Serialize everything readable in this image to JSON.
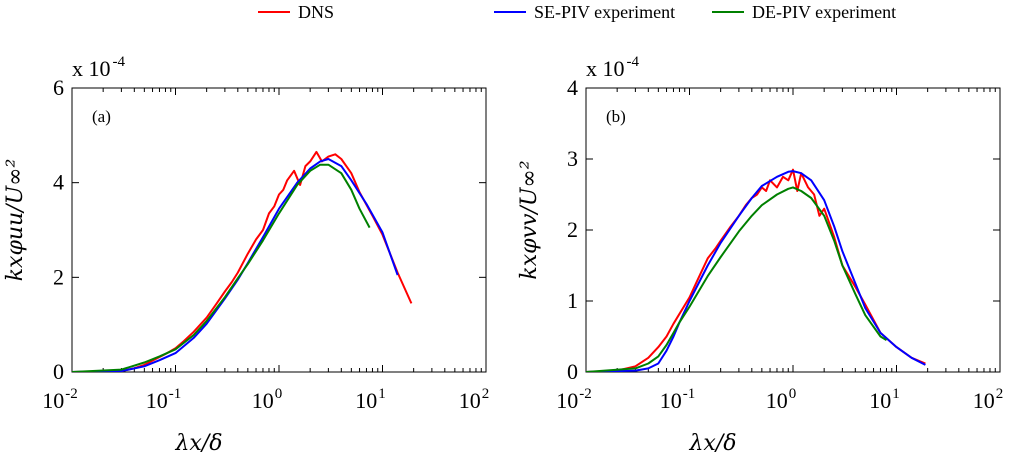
{
  "legend": {
    "entries": [
      {
        "label": "DNS",
        "color": "#ff0000"
      },
      {
        "label": "SE-PIV experiment",
        "color": "#0000ff"
      },
      {
        "label": "DE-PIV experiment",
        "color": "#008000"
      }
    ],
    "placement": "top-center"
  },
  "chart_data": [
    {
      "type": "line",
      "panel_label": "(a)",
      "multiplier_text": "x 10",
      "multiplier_exp": "-4",
      "xlabel": "λx/δ",
      "ylabel": "kxφuu/U∞²",
      "x_scale": "log",
      "xlim": [
        0.01,
        100
      ],
      "ylim": [
        0,
        6
      ],
      "x_ticks": [
        {
          "value": 0.01,
          "base": "10",
          "exp": "-2"
        },
        {
          "value": 0.1,
          "base": "10",
          "exp": "-1"
        },
        {
          "value": 1,
          "base": "10",
          "exp": "0"
        },
        {
          "value": 10,
          "base": "10",
          "exp": "1"
        },
        {
          "value": 100,
          "base": "10",
          "exp": "2"
        }
      ],
      "y_ticks": [
        {
          "value": 0,
          "label": "0"
        },
        {
          "value": 2,
          "label": "2"
        },
        {
          "value": 4,
          "label": "4"
        },
        {
          "value": 6,
          "label": "6"
        }
      ],
      "grid": false,
      "series": [
        {
          "name": "DNS",
          "color": "#ff0000",
          "x": [
            0.01,
            0.03,
            0.04,
            0.05,
            0.06,
            0.08,
            0.1,
            0.12,
            0.15,
            0.2,
            0.25,
            0.3,
            0.35,
            0.4,
            0.5,
            0.6,
            0.7,
            0.8,
            0.9,
            1.0,
            1.1,
            1.2,
            1.4,
            1.6,
            1.8,
            2.0,
            2.3,
            2.6,
            3.0,
            3.5,
            4.0,
            5.0,
            6.0,
            8.0,
            10,
            14,
            19
          ],
          "y": [
            0,
            0.02,
            0.08,
            0.15,
            0.24,
            0.38,
            0.5,
            0.65,
            0.85,
            1.15,
            1.45,
            1.7,
            1.9,
            2.1,
            2.5,
            2.8,
            3.0,
            3.35,
            3.5,
            3.75,
            3.85,
            4.05,
            4.25,
            3.95,
            4.35,
            4.45,
            4.65,
            4.45,
            4.55,
            4.6,
            4.5,
            4.2,
            3.8,
            3.3,
            2.9,
            2.1,
            1.45
          ]
        },
        {
          "name": "SE-PIV experiment",
          "color": "#0000ff",
          "x": [
            0.01,
            0.03,
            0.05,
            0.07,
            0.1,
            0.15,
            0.2,
            0.3,
            0.4,
            0.5,
            0.7,
            1.0,
            1.5,
            2.0,
            2.5,
            3.0,
            4.0,
            5.0,
            7.0,
            10,
            14
          ],
          "y": [
            0,
            0.02,
            0.12,
            0.25,
            0.4,
            0.72,
            1.02,
            1.55,
            1.95,
            2.3,
            2.85,
            3.45,
            4.0,
            4.3,
            4.45,
            4.5,
            4.35,
            4.05,
            3.55,
            2.95,
            2.05
          ]
        },
        {
          "name": "DE-PIV experiment",
          "color": "#008000",
          "x": [
            0.01,
            0.03,
            0.05,
            0.07,
            0.1,
            0.15,
            0.2,
            0.3,
            0.4,
            0.5,
            0.7,
            1.0,
            1.5,
            2.0,
            2.5,
            3.0,
            4.0,
            5.0,
            6.0,
            7.5
          ],
          "y": [
            0,
            0.05,
            0.2,
            0.33,
            0.48,
            0.78,
            1.08,
            1.58,
            1.98,
            2.28,
            2.78,
            3.35,
            3.95,
            4.25,
            4.38,
            4.38,
            4.2,
            3.85,
            3.45,
            3.05
          ]
        }
      ]
    },
    {
      "type": "line",
      "panel_label": "(b)",
      "multiplier_text": "x 10",
      "multiplier_exp": "-4",
      "xlabel": "λx/δ",
      "ylabel": "kxφvv/U∞²",
      "x_scale": "log",
      "xlim": [
        0.01,
        100
      ],
      "ylim": [
        0,
        4
      ],
      "x_ticks": [
        {
          "value": 0.01,
          "base": "10",
          "exp": "-2"
        },
        {
          "value": 0.1,
          "base": "10",
          "exp": "-1"
        },
        {
          "value": 1,
          "base": "10",
          "exp": "0"
        },
        {
          "value": 10,
          "base": "10",
          "exp": "1"
        },
        {
          "value": 100,
          "base": "10",
          "exp": "2"
        }
      ],
      "y_ticks": [
        {
          "value": 0,
          "label": "0"
        },
        {
          "value": 1,
          "label": "1"
        },
        {
          "value": 2,
          "label": "2"
        },
        {
          "value": 3,
          "label": "3"
        },
        {
          "value": 4,
          "label": "4"
        }
      ],
      "grid": false,
      "series": [
        {
          "name": "DNS",
          "color": "#ff0000",
          "x": [
            0.01,
            0.02,
            0.03,
            0.04,
            0.05,
            0.06,
            0.07,
            0.08,
            0.1,
            0.12,
            0.15,
            0.18,
            0.2,
            0.25,
            0.3,
            0.35,
            0.4,
            0.45,
            0.5,
            0.55,
            0.6,
            0.7,
            0.8,
            0.9,
            1.0,
            1.1,
            1.2,
            1.4,
            1.6,
            1.8,
            2.0,
            2.5,
            3.0,
            4.0,
            5.0,
            7.0,
            10,
            14,
            19
          ],
          "y": [
            0,
            0.02,
            0.08,
            0.2,
            0.35,
            0.5,
            0.68,
            0.82,
            1.05,
            1.3,
            1.6,
            1.75,
            1.85,
            2.05,
            2.2,
            2.35,
            2.45,
            2.5,
            2.6,
            2.55,
            2.7,
            2.6,
            2.75,
            2.7,
            2.85,
            2.55,
            2.8,
            2.6,
            2.5,
            2.2,
            2.3,
            1.9,
            1.5,
            1.2,
            0.95,
            0.55,
            0.35,
            0.2,
            0.12
          ]
        },
        {
          "name": "SE-PIV experiment",
          "color": "#0000ff",
          "x": [
            0.01,
            0.03,
            0.04,
            0.05,
            0.06,
            0.07,
            0.08,
            0.1,
            0.15,
            0.2,
            0.3,
            0.4,
            0.5,
            0.7,
            0.9,
            1.0,
            1.2,
            1.5,
            2.0,
            2.5,
            3.0,
            4.0,
            5.0,
            7.0,
            10,
            14,
            19
          ],
          "y": [
            0,
            0.02,
            0.05,
            0.12,
            0.3,
            0.5,
            0.7,
            1.0,
            1.5,
            1.82,
            2.2,
            2.45,
            2.62,
            2.75,
            2.82,
            2.83,
            2.8,
            2.7,
            2.42,
            2.05,
            1.7,
            1.25,
            0.9,
            0.55,
            0.35,
            0.2,
            0.1
          ]
        },
        {
          "name": "DE-PIV experiment",
          "color": "#008000",
          "x": [
            0.01,
            0.03,
            0.04,
            0.05,
            0.06,
            0.07,
            0.08,
            0.1,
            0.15,
            0.2,
            0.3,
            0.4,
            0.5,
            0.7,
            0.9,
            1.0,
            1.2,
            1.5,
            2.0,
            2.5,
            3.0,
            4.0,
            5.0,
            7.0,
            8.0
          ],
          "y": [
            0,
            0.05,
            0.12,
            0.22,
            0.38,
            0.55,
            0.7,
            0.92,
            1.35,
            1.62,
            1.98,
            2.2,
            2.35,
            2.5,
            2.58,
            2.6,
            2.55,
            2.45,
            2.2,
            1.85,
            1.5,
            1.1,
            0.8,
            0.5,
            0.45
          ]
        }
      ]
    }
  ]
}
